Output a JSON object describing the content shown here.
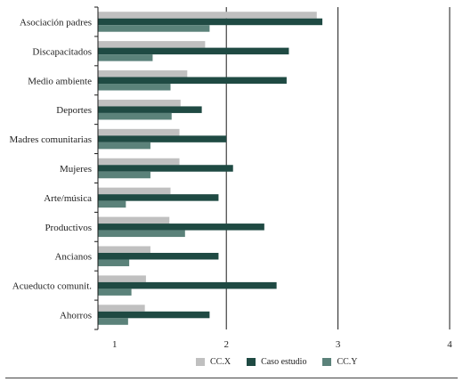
{
  "chart_data": {
    "type": "bar",
    "orientation": "horizontal",
    "categories": [
      "Asociación padres",
      "Discapacitados",
      "Medio ambiente",
      "Deportes",
      "Madres comunitarias",
      "Mujeres",
      "Arte/música",
      "Productivos",
      "Ancianos",
      "Acueducto comunit.",
      "Ahorros"
    ],
    "series": [
      {
        "name": "CC.X",
        "color": "#c0c0c0",
        "values": [
          2.81,
          1.81,
          1.65,
          1.59,
          1.58,
          1.58,
          1.5,
          1.49,
          1.32,
          1.28,
          1.27
        ]
      },
      {
        "name": "Caso estudio",
        "color": "#1f4a43",
        "values": [
          2.86,
          2.56,
          2.54,
          1.78,
          2.0,
          2.06,
          1.93,
          2.34,
          1.93,
          2.45,
          1.85
        ]
      },
      {
        "name": "CC.Y",
        "color": "#5b827a",
        "values": [
          1.85,
          1.34,
          1.5,
          1.51,
          1.32,
          1.32,
          1.1,
          1.63,
          1.13,
          1.15,
          1.12
        ]
      }
    ],
    "xlim": [
      0.85,
      4.0
    ],
    "xticks": [
      1,
      2,
      3,
      4
    ],
    "grid": "vertical",
    "legend_position": "bottom"
  }
}
